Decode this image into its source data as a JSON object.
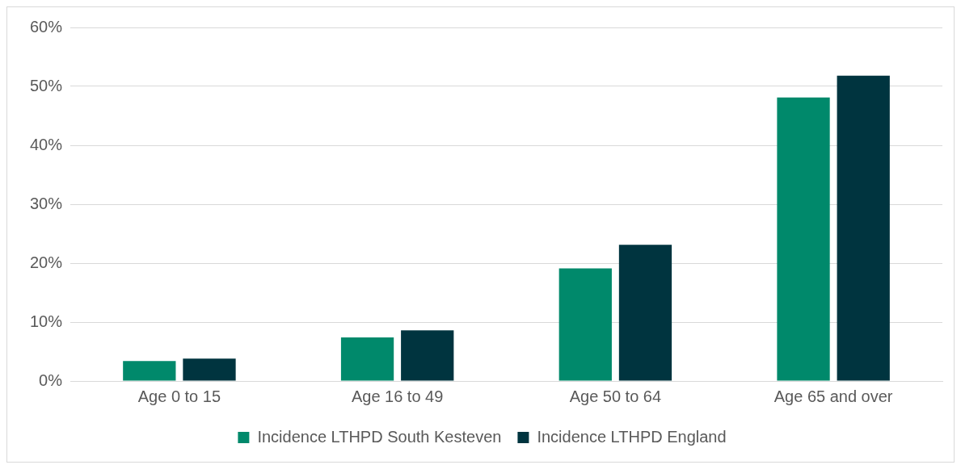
{
  "chart_data": {
    "type": "bar",
    "categories": [
      "Age 0 to 15",
      "Age 16 to 49",
      "Age 50 to 64",
      "Age 65 and over"
    ],
    "series": [
      {
        "name": "Incidence LTHPD South Kesteven",
        "color": "#00896b",
        "values": [
          3.4,
          7.4,
          19.1,
          48.1
        ]
      },
      {
        "name": "Incidence LTHPD England",
        "color": "#00343f",
        "values": [
          3.8,
          8.6,
          23.1,
          51.8
        ]
      }
    ],
    "ylim": [
      0,
      60
    ],
    "yticks": [
      {
        "value": 0,
        "label": "0%"
      },
      {
        "value": 10,
        "label": "10%"
      },
      {
        "value": 20,
        "label": "20%"
      },
      {
        "value": 30,
        "label": "30%"
      },
      {
        "value": 40,
        "label": "40%"
      },
      {
        "value": 50,
        "label": "50%"
      },
      {
        "value": 60,
        "label": "60%"
      }
    ],
    "grid": "y",
    "legend": "bottom"
  }
}
